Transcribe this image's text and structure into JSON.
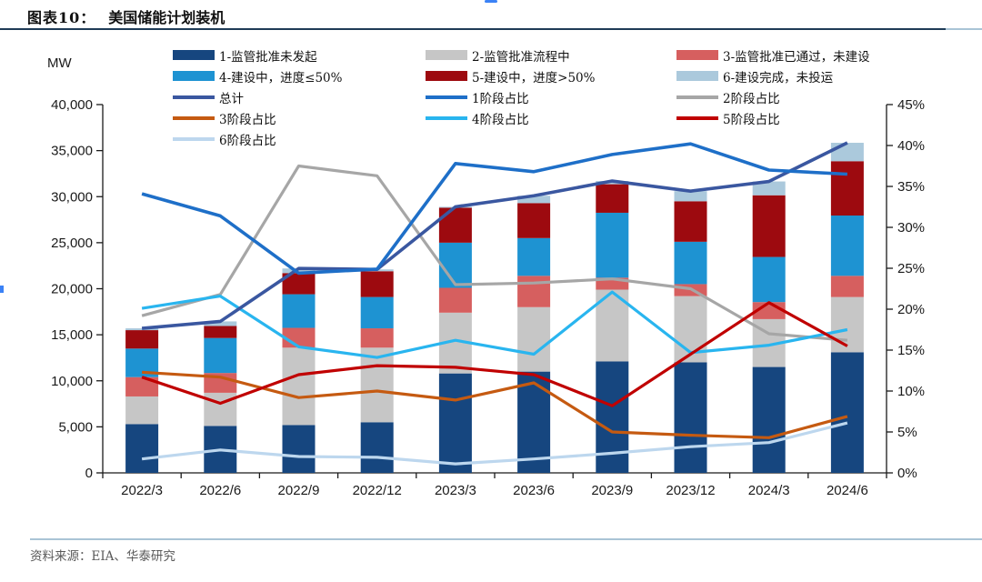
{
  "header": {
    "figure_label": "图表10：",
    "title": "美国储能计划装机"
  },
  "footer": {
    "source": "资料来源：EIA、华泰研究"
  },
  "chart_data": {
    "type": "combo: stacked bar (MW, left axis) + line (share %, right axis)",
    "categories": [
      "2022/3",
      "2022/6",
      "2022/9",
      "2022/12",
      "2023/3",
      "2023/6",
      "2023/9",
      "2023/12",
      "2024/3",
      "2024/6"
    ],
    "left_axis": {
      "label": "MW",
      "min": 0,
      "max": 40000,
      "step": 5000,
      "tick_labels": [
        "0",
        "5,000",
        "10,000",
        "15,000",
        "20,000",
        "25,000",
        "30,000",
        "35,000",
        "40,000"
      ]
    },
    "right_axis": {
      "min": 0,
      "max": 45,
      "step": 5,
      "tick_labels": [
        "0%",
        "5%",
        "10%",
        "15%",
        "20%",
        "25%",
        "30%",
        "35%",
        "40%",
        "45%"
      ]
    },
    "bar_series": [
      {
        "name": "1-监管批准未发起",
        "color": "#16467F",
        "values": [
          5300,
          5100,
          5200,
          5500,
          10800,
          11000,
          12100,
          12000,
          11500,
          13100
        ]
      },
      {
        "name": "2-监管批准流程中",
        "color": "#C6C6C6",
        "values": [
          3000,
          3600,
          8400,
          8100,
          6600,
          7000,
          7800,
          7200,
          5200,
          6000
        ]
      },
      {
        "name": "3-监管批准已通过，未建设",
        "color": "#D65F5F",
        "values": [
          2100,
          2150,
          2150,
          2100,
          2700,
          3400,
          1300,
          1300,
          1850,
          2300
        ]
      },
      {
        "name": "4-建设中，进度≤50%",
        "color": "#1E93D2",
        "values": [
          3100,
          3800,
          3650,
          3400,
          4900,
          4100,
          7050,
          4600,
          4900,
          6550
        ]
      },
      {
        "name": "5-建设中，进度>50%",
        "color": "#9D0A0F",
        "values": [
          2000,
          1300,
          2300,
          2800,
          3800,
          3800,
          3100,
          4400,
          6700,
          5900
        ]
      },
      {
        "name": "6-建设完成，未投运",
        "color": "#ABC9DC",
        "values": [
          200,
          500,
          500,
          200,
          100,
          800,
          350,
          1100,
          1500,
          2000
        ]
      }
    ],
    "total_line": {
      "name": "总计",
      "color": "#3A57A0",
      "axis": "left",
      "values": [
        15700,
        16450,
        22200,
        22100,
        28900,
        30100,
        31700,
        30600,
        31650,
        35850
      ]
    },
    "pct_lines": [
      {
        "name": "1阶段占比",
        "color": "#1E6FC8",
        "values": [
          34.1,
          31.4,
          24.4,
          24.9,
          37.8,
          36.8,
          38.9,
          40.2,
          37.0,
          36.5
        ]
      },
      {
        "name": "2阶段占比",
        "color": "#A6A6A6",
        "values": [
          19.2,
          21.8,
          37.5,
          36.3,
          23.0,
          23.2,
          23.7,
          22.5,
          17.0,
          16.2
        ]
      },
      {
        "name": "3阶段占比",
        "color": "#C55A11",
        "values": [
          12.3,
          11.7,
          9.2,
          10.0,
          8.9,
          11.0,
          5.0,
          4.6,
          4.3,
          6.9
        ]
      },
      {
        "name": "4阶段占比",
        "color": "#29B5EF",
        "values": [
          20.1,
          21.6,
          15.4,
          14.1,
          16.2,
          14.5,
          22.1,
          14.7,
          15.6,
          17.5
        ]
      },
      {
        "name": "5阶段占比",
        "color": "#C00000",
        "values": [
          11.7,
          8.5,
          12.0,
          13.1,
          12.9,
          12.0,
          8.2,
          14.5,
          20.8,
          15.5
        ]
      },
      {
        "name": "6阶段占比",
        "color": "#BDD7EE",
        "values": [
          1.7,
          2.8,
          2.0,
          1.9,
          1.1,
          1.7,
          2.4,
          3.2,
          3.7,
          6.1
        ]
      }
    ],
    "legend": {
      "columns": [
        {
          "items": [
            {
              "swatch": "bar",
              "color": "#16467F",
              "label": "1-监管批准未发起"
            },
            {
              "swatch": "bar",
              "color": "#1E93D2",
              "label": "4-建设中，进度≤50%"
            },
            {
              "swatch": "line",
              "color": "#3A57A0",
              "label": "总计"
            },
            {
              "swatch": "line",
              "color": "#C55A11",
              "label": "3阶段占比"
            },
            {
              "swatch": "line",
              "color": "#BDD7EE",
              "label": "6阶段占比"
            }
          ]
        },
        {
          "items": [
            {
              "swatch": "bar",
              "color": "#C6C6C6",
              "label": "2-监管批准流程中"
            },
            {
              "swatch": "bar",
              "color": "#9D0A0F",
              "label": "5-建设中，进度>50%"
            },
            {
              "swatch": "line",
              "color": "#1E6FC8",
              "label": "1阶段占比"
            },
            {
              "swatch": "line",
              "color": "#29B5EF",
              "label": "4阶段占比"
            }
          ]
        },
        {
          "items": [
            {
              "swatch": "bar",
              "color": "#D65F5F",
              "label": "3-监管批准已通过，未建设"
            },
            {
              "swatch": "bar",
              "color": "#ABC9DC",
              "label": "6-建设完成，未投运"
            },
            {
              "swatch": "line",
              "color": "#A6A6A6",
              "label": "2阶段占比"
            },
            {
              "swatch": "line",
              "color": "#C00000",
              "label": "5阶段占比"
            }
          ]
        }
      ]
    }
  }
}
